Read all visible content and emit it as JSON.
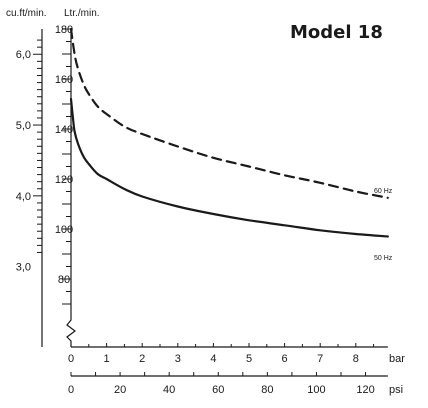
{
  "chart_data": {
    "type": "line",
    "title": "Model 18",
    "y_axes": [
      {
        "label": "cu.ft/min.",
        "ticks": [
          "6,0",
          "5,0",
          "4,0",
          "3,0"
        ],
        "tick_values": [
          6.0,
          5.0,
          4.0,
          3.0
        ]
      },
      {
        "label": "Ltr./min.",
        "ticks": [
          "180",
          "160",
          "140",
          "120",
          "100",
          "80"
        ],
        "tick_values": [
          180,
          160,
          140,
          120,
          100,
          80
        ],
        "ylim": [
          60,
          180
        ]
      }
    ],
    "x_axes": [
      {
        "label": "bar",
        "ticks": [
          "0",
          "1",
          "2",
          "3",
          "4",
          "5",
          "6",
          "7",
          "8"
        ],
        "tick_values": [
          0,
          1,
          2,
          3,
          4,
          5,
          6,
          7,
          8
        ],
        "xlim": [
          0,
          8.9
        ]
      },
      {
        "label": "psi",
        "ticks": [
          "0",
          "20",
          "40",
          "60",
          "80",
          "100",
          "120"
        ],
        "tick_values": [
          0,
          20,
          40,
          60,
          80,
          100,
          120
        ]
      }
    ],
    "series": [
      {
        "name": "60 Hz",
        "style": "dashed",
        "color": "#1a1a1a",
        "points": [
          [
            0,
            180
          ],
          [
            0.1,
            170
          ],
          [
            0.2,
            164
          ],
          [
            0.35,
            158
          ],
          [
            0.5,
            154
          ],
          [
            0.75,
            149
          ],
          [
            1,
            146
          ],
          [
            1.5,
            141
          ],
          [
            2,
            138
          ],
          [
            3,
            133
          ],
          [
            4,
            128.5
          ],
          [
            5,
            125
          ],
          [
            6,
            121.5
          ],
          [
            7,
            118.5
          ],
          [
            8,
            115
          ],
          [
            8.9,
            112.5
          ]
        ]
      },
      {
        "name": "50 Hz",
        "style": "solid",
        "color": "#1a1a1a",
        "points": [
          [
            0,
            152
          ],
          [
            0.05,
            145
          ],
          [
            0.1,
            139
          ],
          [
            0.2,
            134
          ],
          [
            0.35,
            129
          ],
          [
            0.5,
            126
          ],
          [
            0.75,
            122
          ],
          [
            1,
            120
          ],
          [
            1.5,
            116
          ],
          [
            2,
            113
          ],
          [
            3,
            109
          ],
          [
            4,
            106
          ],
          [
            5,
            103.5
          ],
          [
            6,
            101.5
          ],
          [
            7,
            99.5
          ],
          [
            8,
            98
          ],
          [
            8.9,
            97
          ]
        ]
      }
    ]
  }
}
